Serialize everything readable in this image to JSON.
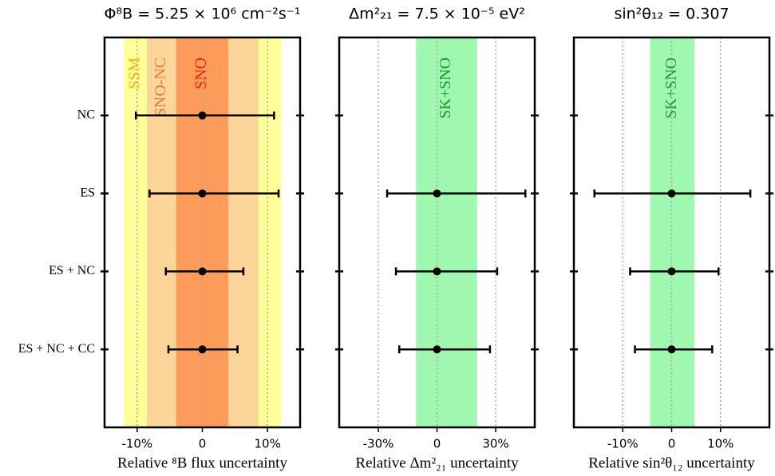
{
  "chart_data": [
    {
      "type": "errorbar",
      "title": "Φ⁸B = 5.25 × 10⁶ cm⁻²s⁻¹",
      "x_label": "Relative ⁸B flux uncertainty",
      "categories": [
        "NC",
        "ES",
        "ES + NC",
        "ES + NC + CC"
      ],
      "values": [
        0,
        0,
        0,
        0
      ],
      "error_minus": [
        10.2,
        8.1,
        5.6,
        5.2
      ],
      "error_plus": [
        11.0,
        11.7,
        6.3,
        5.4
      ],
      "color": "#000000",
      "bands": [
        {
          "name": "SSM",
          "range": [
            -12,
            12.1
          ],
          "color": "#ffff99",
          "label_color": "#f5b400"
        },
        {
          "name": "SNO-NC",
          "range": [
            -8.5,
            8.6
          ],
          "color": "#fcd59a",
          "label_color": "#f07a3c"
        },
        {
          "name": "SNO",
          "range": [
            -4,
            4
          ],
          "color": "#fd9b5a",
          "label_color": "#ff1a00"
        }
      ],
      "xlim": [
        -15,
        15
      ],
      "xticks": [
        {
          "value": -10,
          "label": "-10%"
        },
        0,
        {
          "value": 10,
          "label": "10%"
        }
      ],
      "grid": true
    },
    {
      "type": "errorbar",
      "title": "Δm²₂₁ = 7.5 × 10⁻⁵ eV²",
      "x_label": "Relative Δm²₂₁ uncertainty",
      "categories": [
        "NC",
        "ES",
        "ES + NC",
        "ES + NC + CC"
      ],
      "values": [
        null,
        0,
        0,
        0
      ],
      "error_minus": [
        null,
        25.5,
        21,
        19.3
      ],
      "error_plus": [
        null,
        45.2,
        30.8,
        27.1
      ],
      "color": "#000000",
      "bands": [
        {
          "name": "SK+SNO",
          "range": [
            -10.7,
            20.5
          ],
          "color": "#a0f7b0",
          "label_color": "#1a9a2a"
        }
      ],
      "xlim": [
        -50,
        50
      ],
      "xticks": [
        {
          "value": -30,
          "label": "-30%"
        },
        0,
        {
          "value": 30,
          "label": "30%"
        }
      ],
      "grid": true
    },
    {
      "type": "errorbar",
      "title": "sin²θ₁₂ = 0.307",
      "x_label": "Relative sin²θ₁₂ uncertainty",
      "categories": [
        "NC",
        "ES",
        "ES + NC",
        "ES + NC + CC"
      ],
      "values": [
        null,
        0,
        0,
        0
      ],
      "error_minus": [
        null,
        15.8,
        8.5,
        7.5
      ],
      "error_plus": [
        null,
        16.1,
        9.6,
        8.3
      ],
      "color": "#000000",
      "bands": [
        {
          "name": "SK+SNO",
          "range": [
            -4.4,
            4.7
          ],
          "color": "#a0f7b0",
          "label_color": "#1a9a2a"
        }
      ],
      "xlim": [
        -20,
        20
      ],
      "xticks": [
        {
          "value": -10,
          "label": "-10%"
        },
        0,
        {
          "value": 10,
          "label": "10%"
        }
      ],
      "grid": true
    }
  ]
}
